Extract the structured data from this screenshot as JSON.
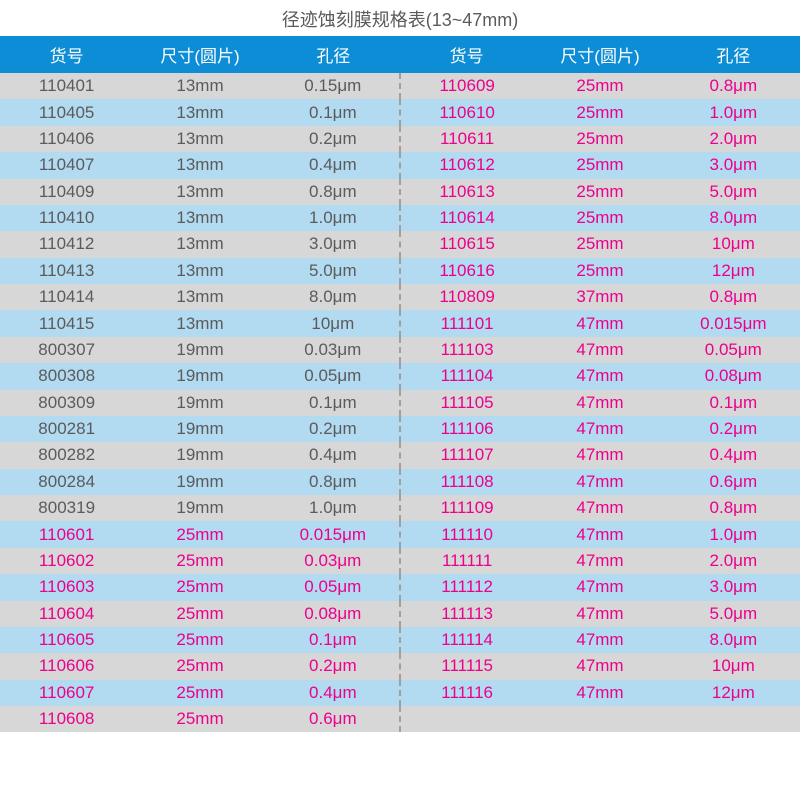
{
  "title": "径迹蚀刻膜规格表(13~47mm)",
  "columns": [
    "货号",
    "尺寸(圆片)",
    "孔径",
    "货号",
    "尺寸(圆片)",
    "孔径"
  ],
  "colors": {
    "header_bg": "#0d8dd6",
    "header_text": "#ffffff",
    "row_even_bg": "#d7d7d7",
    "row_odd_bg": "#b2daf1",
    "text_gray": "#5b5b5b",
    "text_magenta": "#ec008c",
    "divider": "#a0a0a0"
  },
  "rows": [
    {
      "l": [
        "110401",
        "13mm",
        "0.15μm"
      ],
      "lc": "gray",
      "r": [
        "110609",
        "25mm",
        "0.8μm"
      ],
      "rc": "magenta"
    },
    {
      "l": [
        "110405",
        "13mm",
        "0.1μm"
      ],
      "lc": "gray",
      "r": [
        "110610",
        "25mm",
        "1.0μm"
      ],
      "rc": "magenta"
    },
    {
      "l": [
        "110406",
        "13mm",
        "0.2μm"
      ],
      "lc": "gray",
      "r": [
        "110611",
        "25mm",
        "2.0μm"
      ],
      "rc": "magenta"
    },
    {
      "l": [
        "110407",
        "13mm",
        "0.4μm"
      ],
      "lc": "gray",
      "r": [
        "110612",
        "25mm",
        "3.0μm"
      ],
      "rc": "magenta"
    },
    {
      "l": [
        "110409",
        "13mm",
        "0.8μm"
      ],
      "lc": "gray",
      "r": [
        "110613",
        "25mm",
        "5.0μm"
      ],
      "rc": "magenta"
    },
    {
      "l": [
        "110410",
        "13mm",
        "1.0μm"
      ],
      "lc": "gray",
      "r": [
        "110614",
        "25mm",
        "8.0μm"
      ],
      "rc": "magenta"
    },
    {
      "l": [
        "110412",
        "13mm",
        "3.0μm"
      ],
      "lc": "gray",
      "r": [
        "110615",
        "25mm",
        "10μm"
      ],
      "rc": "magenta"
    },
    {
      "l": [
        "110413",
        "13mm",
        "5.0μm"
      ],
      "lc": "gray",
      "r": [
        "110616",
        "25mm",
        "12μm"
      ],
      "rc": "magenta"
    },
    {
      "l": [
        "110414",
        "13mm",
        "8.0μm"
      ],
      "lc": "gray",
      "r": [
        "110809",
        "37mm",
        "0.8μm"
      ],
      "rc": "magenta"
    },
    {
      "l": [
        "110415",
        "13mm",
        "10μm"
      ],
      "lc": "gray",
      "r": [
        "111101",
        "47mm",
        "0.015μm"
      ],
      "rc": "magenta"
    },
    {
      "l": [
        "800307",
        "19mm",
        "0.03μm"
      ],
      "lc": "gray",
      "r": [
        "111103",
        "47mm",
        "0.05μm"
      ],
      "rc": "magenta"
    },
    {
      "l": [
        "800308",
        "19mm",
        "0.05μm"
      ],
      "lc": "gray",
      "r": [
        "111104",
        "47mm",
        "0.08μm"
      ],
      "rc": "magenta"
    },
    {
      "l": [
        "800309",
        "19mm",
        "0.1μm"
      ],
      "lc": "gray",
      "r": [
        "111105",
        "47mm",
        "0.1μm"
      ],
      "rc": "magenta"
    },
    {
      "l": [
        "800281",
        "19mm",
        "0.2μm"
      ],
      "lc": "gray",
      "r": [
        "111106",
        "47mm",
        "0.2μm"
      ],
      "rc": "magenta"
    },
    {
      "l": [
        "800282",
        "19mm",
        "0.4μm"
      ],
      "lc": "gray",
      "r": [
        "111107",
        "47mm",
        "0.4μm"
      ],
      "rc": "magenta"
    },
    {
      "l": [
        "800284",
        "19mm",
        "0.8μm"
      ],
      "lc": "gray",
      "r": [
        "111108",
        "47mm",
        "0.6μm"
      ],
      "rc": "magenta"
    },
    {
      "l": [
        "800319",
        "19mm",
        "1.0μm"
      ],
      "lc": "gray",
      "r": [
        "111109",
        "47mm",
        "0.8μm"
      ],
      "rc": "magenta"
    },
    {
      "l": [
        "110601",
        "25mm",
        "0.015μm"
      ],
      "lc": "magenta",
      "r": [
        "111110",
        "47mm",
        "1.0μm"
      ],
      "rc": "magenta"
    },
    {
      "l": [
        "110602",
        "25mm",
        "0.03μm"
      ],
      "lc": "magenta",
      "r": [
        "111111",
        "47mm",
        "2.0μm"
      ],
      "rc": "magenta"
    },
    {
      "l": [
        "110603",
        "25mm",
        "0.05μm"
      ],
      "lc": "magenta",
      "r": [
        "111112",
        "47mm",
        "3.0μm"
      ],
      "rc": "magenta"
    },
    {
      "l": [
        "110604",
        "25mm",
        "0.08μm"
      ],
      "lc": "magenta",
      "r": [
        "111113",
        "47mm",
        "5.0μm"
      ],
      "rc": "magenta"
    },
    {
      "l": [
        "110605",
        "25mm",
        "0.1μm"
      ],
      "lc": "magenta",
      "r": [
        "111114",
        "47mm",
        "8.0μm"
      ],
      "rc": "magenta"
    },
    {
      "l": [
        "110606",
        "25mm",
        "0.2μm"
      ],
      "lc": "magenta",
      "r": [
        "111115",
        "47mm",
        "10μm"
      ],
      "rc": "magenta"
    },
    {
      "l": [
        "110607",
        "25mm",
        "0.4μm"
      ],
      "lc": "magenta",
      "r": [
        "111116",
        "47mm",
        "12μm"
      ],
      "rc": "magenta"
    },
    {
      "l": [
        "110608",
        "25mm",
        "0.6μm"
      ],
      "lc": "magenta",
      "r": [
        "",
        "",
        ""
      ],
      "rc": "gray"
    }
  ]
}
